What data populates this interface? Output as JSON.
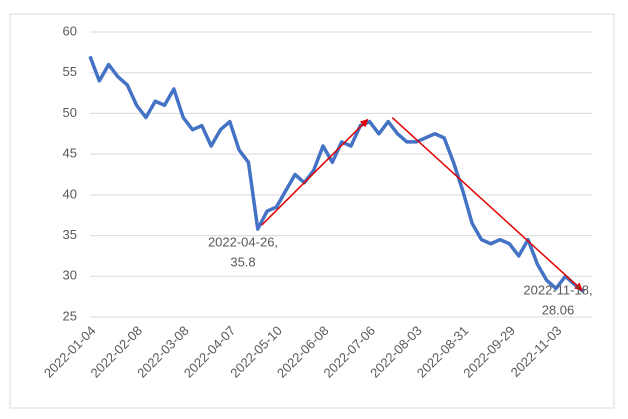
{
  "chart_data": {
    "type": "line",
    "categories": [
      "2022-01-04",
      null,
      null,
      null,
      null,
      "2022-02-08",
      null,
      null,
      null,
      null,
      "2022-03-08",
      null,
      null,
      null,
      null,
      "2022-04-07",
      null,
      null,
      null,
      null,
      "2022-05-10",
      null,
      null,
      null,
      null,
      "2022-06-08",
      null,
      null,
      null,
      null,
      "2022-07-06",
      null,
      null,
      null,
      null,
      "2022-08-03",
      null,
      null,
      null,
      null,
      "2022-08-31",
      null,
      null,
      null,
      null,
      "2022-09-29",
      null,
      null,
      null,
      null,
      "2022-11-03",
      null,
      null,
      null
    ],
    "series": [
      {
        "color": "#4472c4",
        "values": [
          57,
          54,
          56,
          54.5,
          53.5,
          51,
          49.5,
          51.5,
          51,
          53,
          49.5,
          48,
          48.5,
          46,
          48,
          49,
          45.5,
          44,
          35.8,
          38,
          38.5,
          40.5,
          42.5,
          41.5,
          43,
          46,
          44,
          46.5,
          46,
          48.5,
          49,
          47.5,
          49,
          47.5,
          46.5,
          46.5,
          47,
          47.5,
          47,
          44,
          40.5,
          36.5,
          34.5,
          34,
          34.5,
          34,
          32.5,
          34.5,
          31.5,
          29.5,
          28.5,
          30,
          29,
          28.06
        ]
      }
    ],
    "ylim": [
      25,
      60
    ],
    "yticks": [
      25,
      30,
      35,
      40,
      45,
      50,
      55,
      60
    ],
    "grid": true,
    "annotations": [
      {
        "text": [
          "2022-04-26,",
          "35.8"
        ]
      },
      {
        "text": [
          "2022-11-18,",
          "28.06"
        ]
      }
    ],
    "arrow_color": "#e00000"
  }
}
